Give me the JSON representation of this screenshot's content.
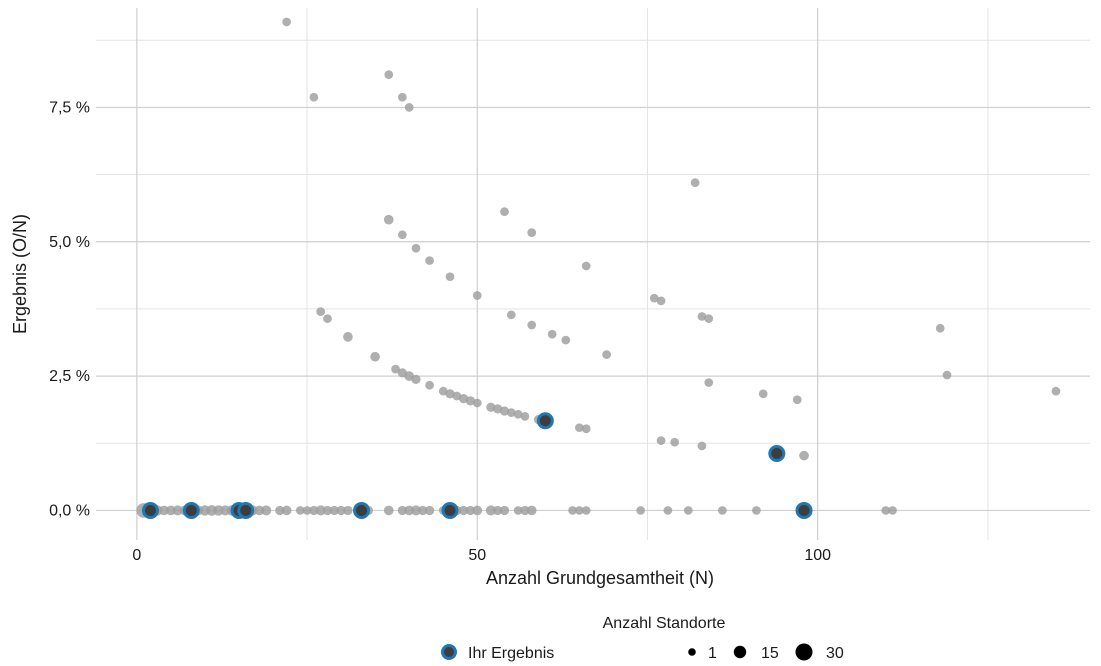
{
  "chart_data": {
    "type": "scatter",
    "xlabel": "Anzahl Grundgesamtheit (N)",
    "ylabel": "Ergebnis (O/N)",
    "xlim": [
      -6,
      140
    ],
    "ylim": [
      -0.0055,
      0.0935
    ],
    "x_ticks": [
      {
        "value": 0,
        "label": "0"
      },
      {
        "value": 50,
        "label": "50"
      },
      {
        "value": 100,
        "label": "100"
      }
    ],
    "y_ticks": [
      {
        "value": 0.0,
        "label": "0,0 %"
      },
      {
        "value": 0.025,
        "label": "2,5 %"
      },
      {
        "value": 0.05,
        "label": "5,0 %"
      },
      {
        "value": 0.075,
        "label": "7,5 %"
      }
    ],
    "x_minor_gridlines": [
      25,
      75,
      125
    ],
    "y_minor_gridlines": [
      0.0125,
      0.0375,
      0.0625,
      0.0875
    ],
    "grid": true,
    "point_color": "#9e9e9e",
    "highlight_fill": "#3d3d3d",
    "highlight_stroke": "#1f77b4",
    "legend": {
      "title": "Anzahl Standorte",
      "position": "bottom",
      "highlight_label": "Ihr Ergebnis",
      "size_entries": [
        {
          "label": "1",
          "count": 1
        },
        {
          "label": "15",
          "count": 15
        },
        {
          "label": "30",
          "count": 30
        }
      ]
    },
    "series": [
      {
        "role": "all",
        "points": [
          {
            "x": 1,
            "y": 0,
            "n": 30
          },
          {
            "x": 2,
            "y": 0,
            "n": 15
          },
          {
            "x": 3,
            "y": 0,
            "n": 5
          },
          {
            "x": 4,
            "y": 0,
            "n": 3
          },
          {
            "x": 5,
            "y": 0,
            "n": 3
          },
          {
            "x": 6,
            "y": 0,
            "n": 4
          },
          {
            "x": 7,
            "y": 0,
            "n": 3
          },
          {
            "x": 9,
            "y": 0,
            "n": 4
          },
          {
            "x": 10,
            "y": 0,
            "n": 5
          },
          {
            "x": 11,
            "y": 0,
            "n": 6
          },
          {
            "x": 12,
            "y": 0,
            "n": 5
          },
          {
            "x": 13,
            "y": 0,
            "n": 4
          },
          {
            "x": 14,
            "y": 0,
            "n": 6
          },
          {
            "x": 17,
            "y": 0,
            "n": 4
          },
          {
            "x": 18,
            "y": 0,
            "n": 3
          },
          {
            "x": 19,
            "y": 0,
            "n": 4
          },
          {
            "x": 21,
            "y": 0,
            "n": 2
          },
          {
            "x": 22,
            "y": 0,
            "n": 3
          },
          {
            "x": 24,
            "y": 0,
            "n": 1
          },
          {
            "x": 25,
            "y": 0,
            "n": 1
          },
          {
            "x": 26,
            "y": 0,
            "n": 2
          },
          {
            "x": 27,
            "y": 0,
            "n": 4
          },
          {
            "x": 28,
            "y": 0,
            "n": 2
          },
          {
            "x": 29,
            "y": 0,
            "n": 2
          },
          {
            "x": 30,
            "y": 0,
            "n": 2
          },
          {
            "x": 31,
            "y": 0,
            "n": 2
          },
          {
            "x": 34,
            "y": 0,
            "n": 2
          },
          {
            "x": 37,
            "y": 0,
            "n": 3
          },
          {
            "x": 39,
            "y": 0,
            "n": 2
          },
          {
            "x": 40,
            "y": 0,
            "n": 3
          },
          {
            "x": 41,
            "y": 0,
            "n": 4
          },
          {
            "x": 42,
            "y": 0,
            "n": 2
          },
          {
            "x": 43,
            "y": 0,
            "n": 2
          },
          {
            "x": 45,
            "y": 0,
            "n": 1
          },
          {
            "x": 47,
            "y": 0,
            "n": 2
          },
          {
            "x": 48,
            "y": 0,
            "n": 2
          },
          {
            "x": 49,
            "y": 0,
            "n": 2
          },
          {
            "x": 50,
            "y": 0,
            "n": 3
          },
          {
            "x": 52,
            "y": 0,
            "n": 4
          },
          {
            "x": 53,
            "y": 0,
            "n": 2
          },
          {
            "x": 54,
            "y": 0,
            "n": 2
          },
          {
            "x": 56,
            "y": 0,
            "n": 1
          },
          {
            "x": 57,
            "y": 0,
            "n": 2
          },
          {
            "x": 58,
            "y": 0,
            "n": 3
          },
          {
            "x": 64,
            "y": 0,
            "n": 1
          },
          {
            "x": 65,
            "y": 0,
            "n": 1
          },
          {
            "x": 66,
            "y": 0,
            "n": 1
          },
          {
            "x": 74,
            "y": 0,
            "n": 1
          },
          {
            "x": 78,
            "y": 0,
            "n": 1
          },
          {
            "x": 81,
            "y": 0,
            "n": 1
          },
          {
            "x": 86,
            "y": 0,
            "n": 1
          },
          {
            "x": 91,
            "y": 0,
            "n": 1
          },
          {
            "x": 110,
            "y": 0,
            "n": 1
          },
          {
            "x": 111,
            "y": 0,
            "n": 1
          },
          {
            "x": 22,
            "y": 0.0909,
            "n": 1
          },
          {
            "x": 26,
            "y": 0.0769,
            "n": 1
          },
          {
            "x": 37,
            "y": 0.0811,
            "n": 1
          },
          {
            "x": 39,
            "y": 0.0769,
            "n": 1
          },
          {
            "x": 40,
            "y": 0.075,
            "n": 1
          },
          {
            "x": 37,
            "y": 0.0541,
            "n": 3
          },
          {
            "x": 39,
            "y": 0.0513,
            "n": 1
          },
          {
            "x": 41,
            "y": 0.0488,
            "n": 1
          },
          {
            "x": 43,
            "y": 0.0465,
            "n": 1
          },
          {
            "x": 46,
            "y": 0.0435,
            "n": 1
          },
          {
            "x": 50,
            "y": 0.04,
            "n": 1
          },
          {
            "x": 54,
            "y": 0.0556,
            "n": 1
          },
          {
            "x": 55,
            "y": 0.0364,
            "n": 1
          },
          {
            "x": 58,
            "y": 0.0517,
            "n": 1
          },
          {
            "x": 58,
            "y": 0.0345,
            "n": 1
          },
          {
            "x": 61,
            "y": 0.0328,
            "n": 1
          },
          {
            "x": 63,
            "y": 0.0317,
            "n": 1
          },
          {
            "x": 66,
            "y": 0.0455,
            "n": 1
          },
          {
            "x": 69,
            "y": 0.029,
            "n": 1
          },
          {
            "x": 76,
            "y": 0.0395,
            "n": 1
          },
          {
            "x": 77,
            "y": 0.039,
            "n": 1
          },
          {
            "x": 82,
            "y": 0.061,
            "n": 1
          },
          {
            "x": 83,
            "y": 0.0361,
            "n": 1
          },
          {
            "x": 84,
            "y": 0.0357,
            "n": 1
          },
          {
            "x": 84,
            "y": 0.0238,
            "n": 1
          },
          {
            "x": 27,
            "y": 0.037,
            "n": 1
          },
          {
            "x": 28,
            "y": 0.0357,
            "n": 1
          },
          {
            "x": 31,
            "y": 0.0323,
            "n": 3
          },
          {
            "x": 35,
            "y": 0.0286,
            "n": 3
          },
          {
            "x": 38,
            "y": 0.0263,
            "n": 1
          },
          {
            "x": 39,
            "y": 0.0256,
            "n": 2
          },
          {
            "x": 40,
            "y": 0.025,
            "n": 3
          },
          {
            "x": 41,
            "y": 0.0244,
            "n": 2
          },
          {
            "x": 43,
            "y": 0.0233,
            "n": 1
          },
          {
            "x": 45,
            "y": 0.0222,
            "n": 1
          },
          {
            "x": 46,
            "y": 0.0217,
            "n": 2
          },
          {
            "x": 47,
            "y": 0.0213,
            "n": 1
          },
          {
            "x": 48,
            "y": 0.0208,
            "n": 2
          },
          {
            "x": 49,
            "y": 0.0204,
            "n": 2
          },
          {
            "x": 50,
            "y": 0.02,
            "n": 1
          },
          {
            "x": 52,
            "y": 0.0192,
            "n": 2
          },
          {
            "x": 53,
            "y": 0.0189,
            "n": 2
          },
          {
            "x": 54,
            "y": 0.0185,
            "n": 2
          },
          {
            "x": 55,
            "y": 0.0182,
            "n": 1
          },
          {
            "x": 56,
            "y": 0.0179,
            "n": 1
          },
          {
            "x": 57,
            "y": 0.0175,
            "n": 1
          },
          {
            "x": 59,
            "y": 0.0169,
            "n": 2
          },
          {
            "x": 60,
            "y": 0.0167,
            "n": 4
          },
          {
            "x": 65,
            "y": 0.0154,
            "n": 1
          },
          {
            "x": 66,
            "y": 0.0152,
            "n": 1
          },
          {
            "x": 77,
            "y": 0.013,
            "n": 1
          },
          {
            "x": 79,
            "y": 0.0127,
            "n": 1
          },
          {
            "x": 83,
            "y": 0.012,
            "n": 1
          },
          {
            "x": 92,
            "y": 0.0217,
            "n": 1
          },
          {
            "x": 97,
            "y": 0.0206,
            "n": 1
          },
          {
            "x": 98,
            "y": 0.0102,
            "n": 3
          },
          {
            "x": 118,
            "y": 0.0339,
            "n": 1
          },
          {
            "x": 119,
            "y": 0.0252,
            "n": 1
          },
          {
            "x": 135,
            "y": 0.0222,
            "n": 1
          }
        ]
      },
      {
        "role": "highlight",
        "name": "Ihr Ergebnis",
        "points": [
          {
            "x": 2,
            "y": 0
          },
          {
            "x": 8,
            "y": 0
          },
          {
            "x": 15,
            "y": 0
          },
          {
            "x": 16,
            "y": 0
          },
          {
            "x": 33,
            "y": 0
          },
          {
            "x": 46,
            "y": 0
          },
          {
            "x": 60,
            "y": 0.0167
          },
          {
            "x": 94,
            "y": 0.0106
          },
          {
            "x": 98,
            "y": 0
          }
        ]
      }
    ]
  }
}
